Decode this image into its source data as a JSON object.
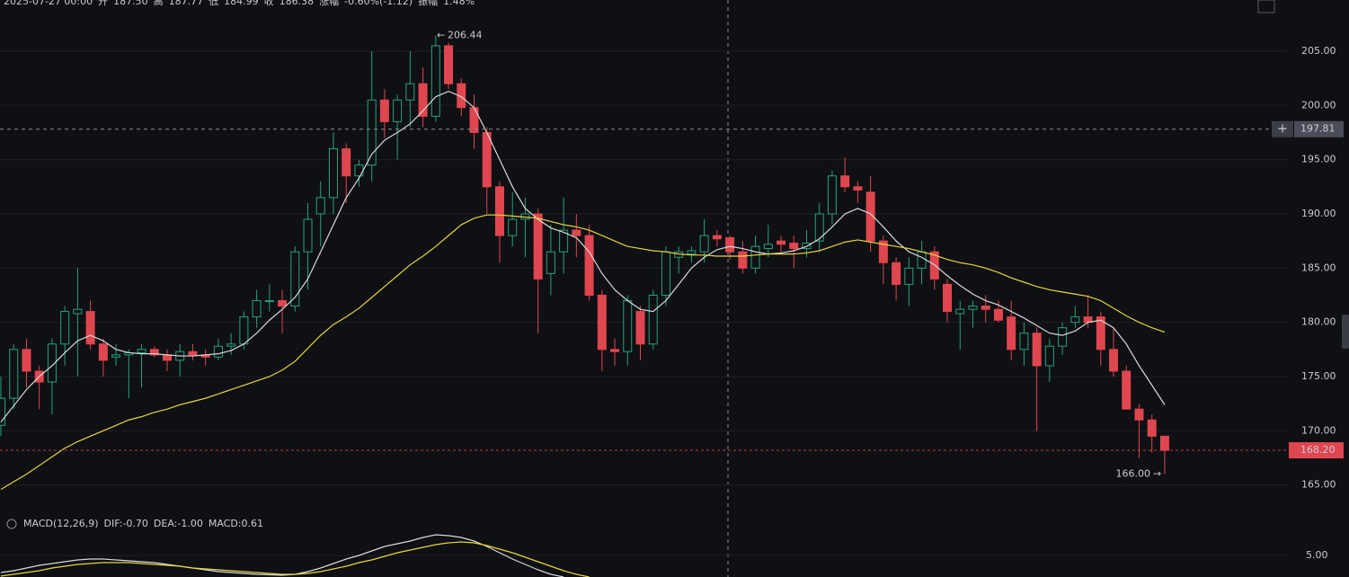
{
  "chart_data": {
    "type": "candlestick",
    "header": {
      "items": [
        {
          "text": "2025-07-27 00:00",
          "kind": "label"
        },
        {
          "text": "开",
          "kind": "label"
        },
        {
          "text": "187.50",
          "kind": "value"
        },
        {
          "text": "高",
          "kind": "label"
        },
        {
          "text": "187.77",
          "kind": "value"
        },
        {
          "text": "低",
          "kind": "label"
        },
        {
          "text": "184.99",
          "kind": "value"
        },
        {
          "text": "收",
          "kind": "label"
        },
        {
          "text": "186.38",
          "kind": "value"
        },
        {
          "text": "涨幅",
          "kind": "label"
        },
        {
          "text": "-0.60%(-1.12)",
          "kind": "value"
        },
        {
          "text": "振幅",
          "kind": "label"
        },
        {
          "text": "1.48%",
          "kind": "value"
        }
      ]
    },
    "up_color": "#26a17f",
    "down_color": "#e0464f",
    "ylim": [
      162.9,
      209.72
    ],
    "yticks": [
      {
        "value": 205,
        "label": "205.00"
      },
      {
        "value": 200,
        "label": "200.00"
      },
      {
        "value": 195,
        "label": "195.00"
      },
      {
        "value": 190,
        "label": "190.00"
      },
      {
        "value": 185,
        "label": "185.00"
      },
      {
        "value": 180,
        "label": "180.00"
      },
      {
        "value": 175,
        "label": "175.00"
      },
      {
        "value": 170,
        "label": "170.00"
      },
      {
        "value": 165,
        "label": "165.00"
      }
    ],
    "grid": true,
    "open": [
      170.5,
      173,
      177.5,
      175.5,
      174.5,
      178,
      180.8,
      181,
      178,
      176.8,
      177,
      177.2,
      177.5,
      177,
      176.5,
      177.3,
      177,
      176.8,
      177.8,
      178,
      180.5,
      182,
      182,
      181.5,
      186.5,
      190,
      191.5,
      196,
      193.5,
      194.5,
      200.5,
      198.5,
      200.5,
      202,
      199,
      205.5,
      202,
      199.8,
      197.5,
      192.5,
      188,
      189.5,
      190,
      184.5,
      186.5,
      188.5,
      188,
      182.5,
      177.5,
      177.3,
      181,
      178,
      182.5,
      186,
      186.3,
      186.5,
      188,
      187.8,
      186.5,
      185,
      186.8,
      187.5,
      187.3,
      186.8,
      187.5,
      190,
      193.5,
      192.5,
      192,
      187.5,
      185.5,
      183.5,
      185,
      186.5,
      183.5,
      180.8,
      181.2,
      181.5,
      181.2,
      180.5,
      177.5,
      179,
      176,
      177.8,
      180,
      180.5,
      180.5,
      177.5,
      175.5,
      172,
      171,
      169.5
    ],
    "high": [
      175,
      178,
      178.5,
      176,
      178.5,
      181.5,
      185,
      182,
      178.5,
      178,
      177.5,
      178,
      177.8,
      177.5,
      178,
      178,
      177.5,
      178.5,
      179,
      181,
      183,
      183.5,
      183,
      187,
      191,
      193,
      197.5,
      196.5,
      195,
      205,
      201.5,
      201,
      205,
      203.5,
      206.44,
      205.8,
      202.5,
      201,
      198,
      193,
      192,
      191.5,
      190.5,
      189,
      191.5,
      190,
      189,
      183,
      178.5,
      182.5,
      181.5,
      183,
      187,
      187,
      187,
      189.5,
      188.5,
      188,
      187.5,
      188,
      189,
      188,
      188,
      188.5,
      191,
      194,
      195.2,
      193,
      193.5,
      188,
      186,
      186,
      187.5,
      187,
      184,
      182,
      182,
      182.5,
      182,
      182,
      180,
      179.5,
      178.5,
      180,
      181.5,
      182.5,
      181,
      179.5,
      176,
      172.5,
      171.5,
      169.5
    ],
    "low": [
      169.5,
      172,
      174,
      172,
      171.5,
      176,
      175,
      177.5,
      175,
      176,
      173,
      174,
      176.8,
      175.5,
      175,
      176.5,
      176,
      176.5,
      177,
      177.5,
      179.5,
      181,
      179,
      181,
      183,
      187,
      190,
      191,
      192.5,
      193,
      197,
      195,
      198,
      198,
      198.5,
      201.5,
      199,
      196,
      190,
      185.5,
      187,
      186,
      179,
      182.5,
      184.5,
      186,
      182,
      175.5,
      176,
      176,
      176.5,
      177.5,
      181.5,
      184.5,
      185.5,
      185.5,
      187,
      185.8,
      184.5,
      184.5,
      186,
      186.5,
      185,
      186,
      186.5,
      189,
      192,
      191,
      186.5,
      183.5,
      182,
      181.5,
      183.5,
      183,
      180,
      177.5,
      179.5,
      180,
      180,
      176.5,
      176,
      170,
      174.5,
      177,
      179.5,
      179.5,
      176,
      175,
      172,
      167.5,
      168,
      166
    ],
    "close": [
      173,
      177.5,
      175.5,
      174.5,
      178,
      181,
      181.2,
      178,
      176.5,
      177,
      177.2,
      177.5,
      177,
      176.5,
      177.3,
      177,
      176.8,
      177.8,
      178,
      180.5,
      182,
      182,
      181.5,
      186.5,
      189.5,
      191.5,
      196,
      193.5,
      194.5,
      200.5,
      198.5,
      200.5,
      202,
      199,
      205.5,
      202,
      199.8,
      197.5,
      192.5,
      188,
      189.5,
      190,
      184,
      186.5,
      188.5,
      188,
      182.5,
      177.5,
      177.3,
      182,
      178,
      182.5,
      186.5,
      186.5,
      186.6,
      188,
      187.7,
      186.5,
      185,
      187,
      187.2,
      187.2,
      186.8,
      187.3,
      190,
      193.5,
      192.5,
      192.2,
      187.5,
      185.5,
      183.5,
      185,
      186.5,
      184,
      181,
      181.2,
      181.5,
      181.2,
      180.2,
      177.5,
      179,
      176,
      177.8,
      179.5,
      180.5,
      180,
      177.5,
      175.5,
      172,
      171,
      169.5,
      168.2
    ],
    "lines": [
      {
        "color": "#d9d9d9",
        "values": [
          170.8,
          172.3,
          173.8,
          175,
          176,
          177.2,
          178.3,
          178.8,
          178.3,
          177.5,
          177.2,
          177.1,
          177.1,
          177,
          176.9,
          176.9,
          177,
          177.1,
          177.4,
          178,
          179,
          180.2,
          181.2,
          182.3,
          184,
          186.5,
          189,
          191.5,
          193.3,
          195.5,
          196.8,
          197.5,
          198.3,
          199.5,
          200.8,
          201.3,
          200.8,
          199.8,
          197.5,
          195,
          192.5,
          190.5,
          189.5,
          188.7,
          188.3,
          187.8,
          186.5,
          184.5,
          183,
          182,
          181.2,
          181,
          182,
          183.5,
          185,
          186,
          186.7,
          187,
          186.8,
          186.5,
          186.3,
          186.4,
          186.6,
          187,
          187.7,
          188.8,
          190,
          190.5,
          190,
          188.8,
          187.5,
          186.5,
          186,
          185.3,
          184.3,
          183.4,
          182.6,
          182,
          181.6,
          181,
          180.4,
          179.7,
          179,
          178.8,
          179.2,
          180,
          180.2,
          179.5,
          178,
          176,
          174.2,
          172.4
        ]
      },
      {
        "color": "#e6d53c",
        "values": [
          164.6,
          165.3,
          166,
          166.8,
          167.6,
          168.4,
          169,
          169.5,
          170,
          170.5,
          171,
          171.3,
          171.7,
          172,
          172.4,
          172.7,
          173,
          173.4,
          173.8,
          174.2,
          174.6,
          175,
          175.6,
          176.4,
          177.6,
          178.8,
          179.8,
          180.5,
          181.3,
          182.3,
          183.3,
          184.3,
          185.3,
          186.1,
          187,
          188,
          189,
          189.6,
          189.9,
          189.9,
          189.8,
          189.7,
          189.6,
          189.3,
          189,
          188.8,
          188.5,
          188,
          187.5,
          187,
          186.8,
          186.6,
          186.5,
          186.3,
          186.2,
          186.2,
          186.1,
          186.1,
          186.1,
          186.2,
          186.3,
          186.3,
          186.3,
          186.4,
          186.6,
          187,
          187.4,
          187.6,
          187.4,
          187.2,
          187,
          186.8,
          186.5,
          186.2,
          185.8,
          185.5,
          185.3,
          185,
          184.6,
          184.1,
          183.7,
          183.3,
          183,
          182.8,
          182.6,
          182.4,
          182,
          181.3,
          180.6,
          180,
          179.5,
          179.1
        ]
      }
    ],
    "high_marker": 206.44,
    "low_marker": {
      "value": 166,
      "label": "166.00"
    },
    "crosshair_price": 197.81,
    "last_price": {
      "value": 168.2,
      "label": "168.20"
    },
    "macd": {
      "legend": [
        "MACD(12,26,9)",
        "DIF:-0.70",
        "DEA:-1.00",
        "MACD:0.61"
      ],
      "ylim": [
        2.6,
        9.3
      ],
      "yticks": [
        {
          "value": 5,
          "label": "5.00"
        }
      ],
      "lines": [
        {
          "color": "#d9d9d9",
          "values": [
            3.1,
            3.3,
            3.6,
            3.9,
            4.1,
            4.3,
            4.5,
            4.6,
            4.6,
            4.5,
            4.4,
            4.3,
            4.2,
            4.0,
            3.8,
            3.6,
            3.4,
            3.2,
            3.1,
            3.0,
            2.9,
            2.85,
            2.8,
            2.9,
            3.2,
            3.6,
            4.1,
            4.6,
            5.0,
            5.5,
            6.0,
            6.3,
            6.6,
            7.0,
            7.3,
            7.2,
            7.0,
            6.6,
            6.0,
            5.3,
            4.6,
            4.0,
            3.4,
            2.9,
            2.6
          ]
        },
        {
          "color": "#e6d53c",
          "values": [
            2.7,
            2.9,
            3.1,
            3.3,
            3.6,
            3.8,
            4.0,
            4.1,
            4.2,
            4.2,
            4.2,
            4.1,
            4.0,
            3.9,
            3.8,
            3.6,
            3.5,
            3.4,
            3.3,
            3.2,
            3.1,
            3.0,
            2.9,
            2.9,
            3.0,
            3.2,
            3.5,
            3.8,
            4.2,
            4.5,
            4.9,
            5.3,
            5.6,
            5.9,
            6.2,
            6.4,
            6.5,
            6.4,
            6.1,
            5.7,
            5.3,
            4.8,
            4.3,
            3.8,
            3.3,
            2.9,
            2.6
          ]
        }
      ]
    }
  }
}
